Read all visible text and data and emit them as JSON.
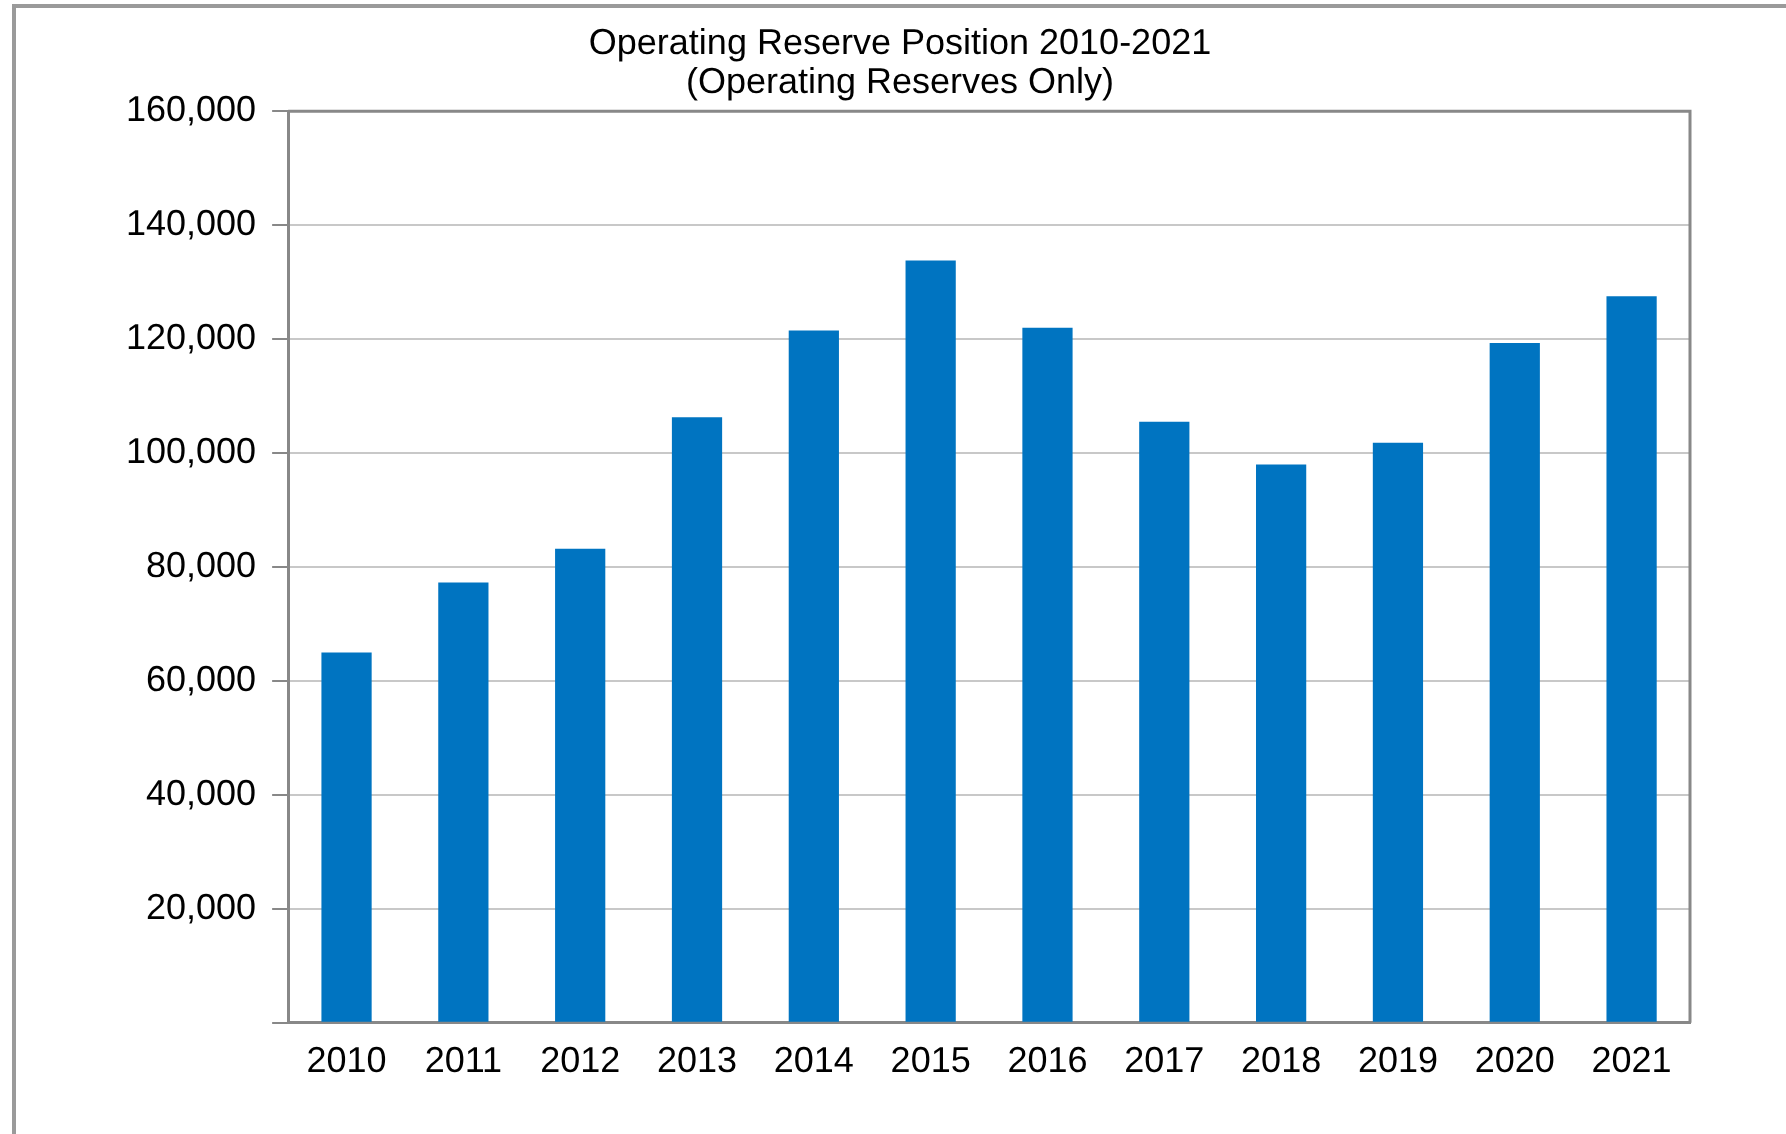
{
  "chart_data": {
    "type": "bar",
    "title": [
      "Operating Reserve Position 2010-2021",
      "(Operating Reserves Only)"
    ],
    "categories": [
      "2010",
      "2011",
      "2012",
      "2013",
      "2014",
      "2015",
      "2016",
      "2017",
      "2018",
      "2019",
      "2020",
      "2021"
    ],
    "values": [
      65000,
      77300,
      83200,
      106300,
      121500,
      133800,
      122000,
      105500,
      98000,
      101800,
      119300,
      127500
    ],
    "color": "#0074c1",
    "ylim": [
      0,
      160000
    ],
    "yticks": [
      {
        "value": 0,
        "label": null
      },
      {
        "value": 20000,
        "label": "20,000"
      },
      {
        "value": 40000,
        "label": "40,000"
      },
      {
        "value": 60000,
        "label": "60,000"
      },
      {
        "value": 80000,
        "label": "80,000"
      },
      {
        "value": 100000,
        "label": "100,000"
      },
      {
        "value": 120000,
        "label": "120,000"
      },
      {
        "value": 140000,
        "label": "140,000"
      },
      {
        "value": 160000,
        "label": "160,000"
      }
    ],
    "grid": "y",
    "legend": false
  }
}
